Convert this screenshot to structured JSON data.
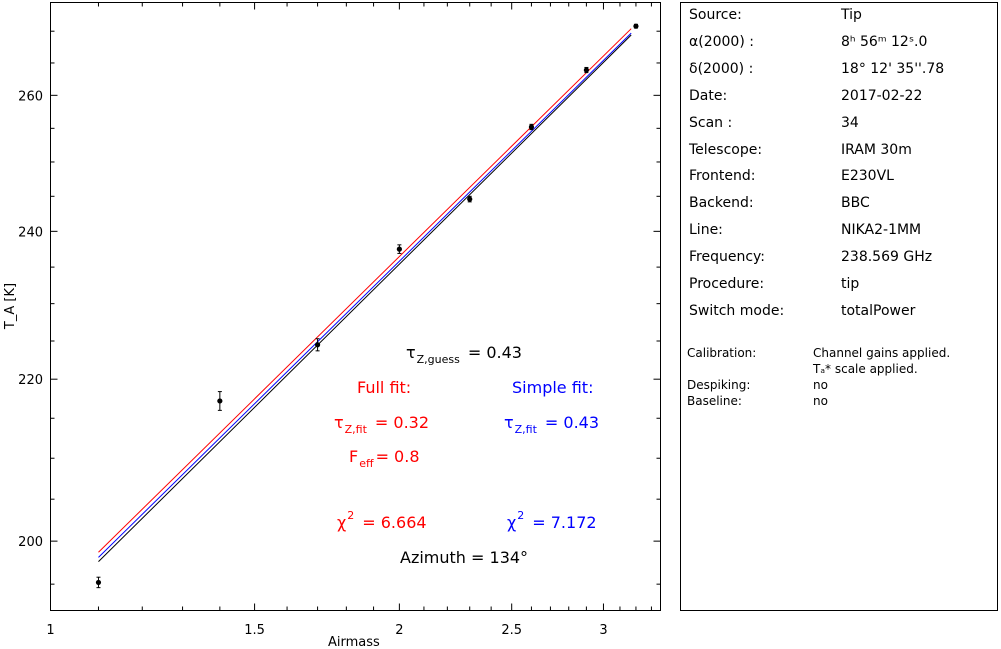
{
  "chart_data": {
    "type": "scatter",
    "xlabel": "Airmass",
    "ylabel": "T_A [K]",
    "xscale": "log",
    "yscale": "log",
    "xlim": [
      1,
      3.36
    ],
    "ylim": [
      192,
      274.6
    ],
    "xticks": [
      "1",
      "1.5",
      "2",
      "2.5",
      "3"
    ],
    "yticks": [
      "200",
      "220",
      "240",
      "260"
    ],
    "grid": false,
    "points": {
      "x": [
        1.1,
        1.4,
        1.7,
        2.0,
        2.3,
        2.6,
        2.9,
        3.2
      ],
      "y": [
        195.2,
        217.2,
        224.5,
        237.5,
        244.6,
        255.2,
        263.9,
        270.8
      ],
      "err": [
        0.6,
        1.2,
        0.8,
        0.6,
        0.4,
        0.4,
        0.4,
        0.3
      ]
    },
    "fits": [
      {
        "label": "Full fit",
        "color": "#ff0000",
        "x": [
          1.1,
          3.17
        ],
        "y": [
          198.7,
          270.4
        ]
      },
      {
        "label": "Simple fit",
        "color": "#0000ff",
        "x": [
          1.1,
          3.17
        ],
        "y": [
          198.1,
          269.7
        ]
      },
      {
        "label": "guess",
        "color": "#000000",
        "x": [
          1.1,
          3.17
        ],
        "y": [
          197.6,
          269.4
        ]
      }
    ]
  },
  "annotations": {
    "tau_guess_sym": "τ",
    "tau_guess_sub": "Z,guess",
    "tau_guess_val": "= 0.43",
    "full_title": "Full fit:",
    "simple_title": "Simple fit:",
    "full_tau_sym": "τ",
    "full_tau_sub": "Z,fit",
    "full_tau_val": "= 0.32",
    "simple_tau_sym": "τ",
    "simple_tau_sub": "Z,fit",
    "simple_tau_val": "= 0.43",
    "feff_sym": "F",
    "feff_sub": "eff",
    "feff_val": "= 0.8",
    "full_chi_sym": "χ",
    "full_chi_sup": "2",
    "full_chi_val": "= 6.664",
    "simple_chi_sym": "χ",
    "simple_chi_sup": "2",
    "simple_chi_val": "= 7.172",
    "azimuth": "Azimuth = 134°",
    "colors": {
      "full": "#ff0000",
      "simple": "#0000ff"
    }
  },
  "info": {
    "rows": [
      {
        "k": "Source:",
        "v": "Tip"
      },
      {
        "k": "α(2000) :",
        "v": "8ʰ 56ᵐ 12ˢ.0"
      },
      {
        "k": "δ(2000) :",
        "v": "18° 12' 35''.78"
      },
      {
        "k": "Date:",
        "v": "2017-02-22"
      },
      {
        "k": "Scan :",
        "v": "34"
      },
      {
        "k": "Telescope:",
        "v": "IRAM 30m"
      },
      {
        "k": "Frontend:",
        "v": "E230VL"
      },
      {
        "k": "Backend:",
        "v": "BBC"
      },
      {
        "k": "Line:",
        "v": "NIKA2-1MM"
      },
      {
        "k": "Frequency:",
        "v": "238.569 GHz"
      },
      {
        "k": "Procedure:",
        "v": "tip"
      },
      {
        "k": "Switch mode:",
        "v": "totalPower"
      }
    ],
    "small": [
      {
        "k": "Calibration:",
        "v": "Channel gains applied."
      },
      {
        "k": "",
        "v": "Tₐ* scale applied."
      },
      {
        "k": "Despiking:",
        "v": "no"
      },
      {
        "k": "Baseline:",
        "v": "no"
      }
    ]
  }
}
